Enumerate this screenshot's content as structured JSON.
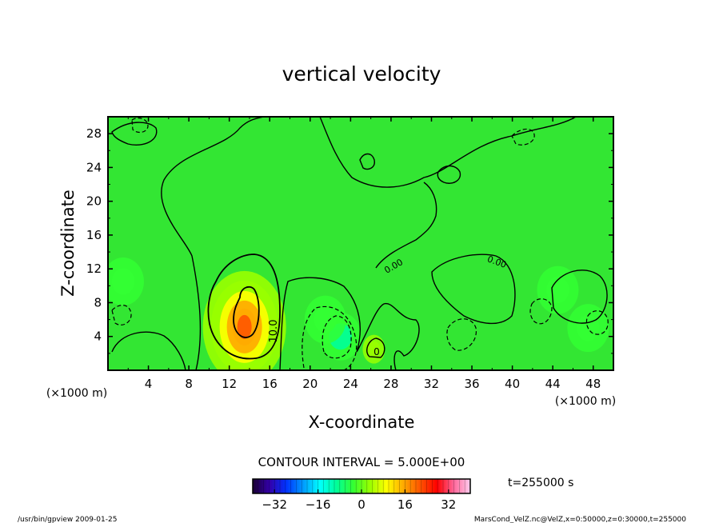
{
  "chart_data": {
    "type": "heatmap",
    "title": "vertical velocity",
    "xlabel": "X-coordinate",
    "ylabel": "Z-coordinate",
    "x_unit": "(×1000 m)",
    "y_unit": "(×1000 m)",
    "xlim": [
      0,
      50
    ],
    "ylim": [
      0,
      30
    ],
    "x_ticks": [
      4,
      8,
      12,
      16,
      20,
      24,
      28,
      32,
      36,
      40,
      44,
      48
    ],
    "y_ticks": [
      4,
      8,
      12,
      16,
      20,
      24,
      28
    ],
    "x_tick_labels": [
      "4",
      "8",
      "12",
      "16",
      "20",
      "24",
      "28",
      "32",
      "36",
      "40",
      "44",
      "48"
    ],
    "y_tick_labels": [
      "4",
      "8",
      "12",
      "16",
      "20",
      "24",
      "28"
    ],
    "contour_interval_text": "CONTOUR INTERVAL = 5.000E+00",
    "contour_labels": [
      "10.0",
      "0",
      "0.00",
      "0.00"
    ],
    "features": [
      {
        "kind": "max",
        "x": 13.5,
        "z": 5.5,
        "value": 20
      },
      {
        "kind": "positive",
        "x": 26.3,
        "z": 2.5,
        "value": 3
      },
      {
        "kind": "min",
        "x": 23.0,
        "z": 4.0,
        "value": -8
      },
      {
        "kind": "min",
        "x": 21.5,
        "z": 6.0,
        "value": -5
      },
      {
        "kind": "min",
        "x": 44.5,
        "z": 9.5,
        "value": -6
      },
      {
        "kind": "min",
        "x": 47.5,
        "z": 5.0,
        "value": -5
      },
      {
        "kind": "min",
        "x": 1.5,
        "z": 10.5,
        "value": -4
      }
    ],
    "colorbar": {
      "min": -40,
      "max": 40,
      "tick_values": [
        -32,
        -16,
        0,
        16,
        32
      ],
      "tick_labels": [
        "−32",
        "−16",
        "0",
        "16",
        "32"
      ],
      "colors": [
        "#1a0033",
        "#3300aa",
        "#0033ff",
        "#0099ff",
        "#00ffff",
        "#00ff99",
        "#33ff33",
        "#99ff00",
        "#ffff00",
        "#ffaa00",
        "#ff5500",
        "#ff0000",
        "#ff6699",
        "#ffccee"
      ]
    },
    "time_label": "t=255000 s",
    "colors": {
      "background_field": "#33e633",
      "contour": "#000000"
    }
  },
  "footer": {
    "left": "/usr/bin/gpview  2009-01-25",
    "right": "MarsCond_VelZ.nc@VelZ,x=0:50000,z=0:30000,t=255000"
  }
}
